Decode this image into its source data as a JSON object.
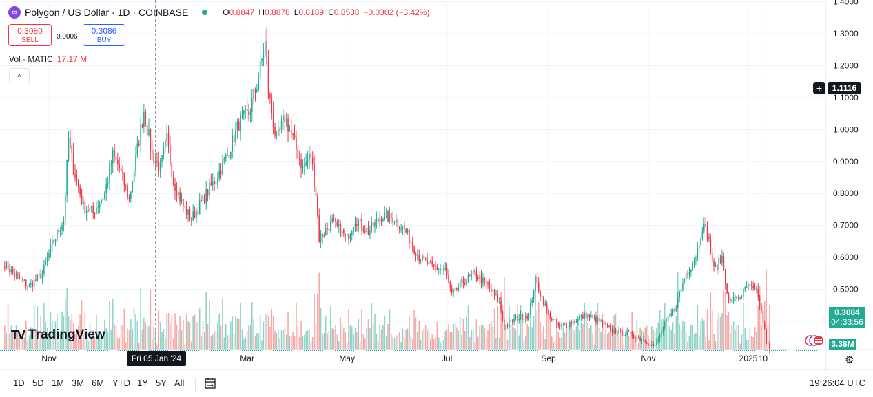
{
  "header": {
    "symbol_title": "Polygon / US Dollar · 1D · COINBASE",
    "open_label": "O",
    "open": "0.8847",
    "high_label": "H",
    "high": "0.8878",
    "low_label": "L",
    "low": "0.8189",
    "close_label": "C",
    "close": "0.8538",
    "change": "−0.0302 (−3.42%)"
  },
  "trade": {
    "sell_price": "0.3080",
    "sell_label": "SELL",
    "spread": "0.0006",
    "buy_price": "0.3086",
    "buy_label": "BUY"
  },
  "volume_indicator": {
    "label": "Vol · MATIC",
    "value": "17.17 M",
    "collapse_glyph": "˄"
  },
  "watermark": {
    "logo_text": "TV",
    "text": "TradingView"
  },
  "price_axis": {
    "crosshair_price": "1.1116",
    "current_price": "0.3084",
    "countdown": "04:33:56",
    "volume_value": "3.38M"
  },
  "time_axis": {
    "crosshair_date": "Fri 05 Jan '24"
  },
  "bottom_bar": {
    "ranges": [
      "1D",
      "5D",
      "1M",
      "3M",
      "6M",
      "YTD",
      "1Y",
      "5Y",
      "All"
    ],
    "clock": "19:26:04 UTC"
  },
  "colors": {
    "up": "#22ab94",
    "down": "#f23645",
    "up_vol": "#92d3c9",
    "down_vol": "#f7a9a7",
    "grid": "#f0f3fa",
    "crosshair": "#9598a1"
  },
  "icons": [
    "polygon-logo-icon",
    "collapse-chevron-icon",
    "plus-circle-icon",
    "flag-icon",
    "gear-icon",
    "calendar-range-icon"
  ],
  "chart_data": {
    "type": "candlestick",
    "title": "Polygon / US Dollar · 1D · COINBASE",
    "ylim": [
      0.26,
      1.44
    ],
    "y_ticks": [
      0.4,
      0.5,
      0.6,
      0.7,
      0.8,
      0.9,
      1.0,
      1.1,
      1.2,
      1.3,
      1.4
    ],
    "y_tick_labels": [
      "0.4000",
      "0.5000",
      "0.6000",
      "0.7000",
      "0.8000",
      "0.9000",
      "1.0000",
      "1.1000",
      "1.2000",
      "1.3000",
      "1.4000"
    ],
    "x_tick_labels": [
      "Nov",
      "Mar",
      "May",
      "Jul",
      "Sep",
      "Nov",
      "2025",
      "10"
    ],
    "x_tick_dates": [
      "2023-11-01",
      "2024-03-01",
      "2024-05-01",
      "2024-07-01",
      "2024-09-01",
      "2024-11-01",
      "2025-01-01",
      "2025-01-10"
    ],
    "start_date": "2023-10-05",
    "end_date": "2025-01-14",
    "crosshair": {
      "date": "2024-01-05",
      "price": 1.1116
    },
    "current_price": 0.3084,
    "close_anchors": [
      [
        "2023-10-05",
        0.58
      ],
      [
        "2023-10-12",
        0.54
      ],
      [
        "2023-10-20",
        0.51
      ],
      [
        "2023-10-28",
        0.55
      ],
      [
        "2023-11-03",
        0.64
      ],
      [
        "2023-11-10",
        0.72
      ],
      [
        "2023-11-13",
        0.97
      ],
      [
        "2023-11-16",
        0.88
      ],
      [
        "2023-11-22",
        0.76
      ],
      [
        "2023-11-28",
        0.74
      ],
      [
        "2023-12-05",
        0.8
      ],
      [
        "2023-12-10",
        0.92
      ],
      [
        "2023-12-14",
        0.88
      ],
      [
        "2023-12-20",
        0.78
      ],
      [
        "2023-12-26",
        0.97
      ],
      [
        "2023-12-29",
        1.06
      ],
      [
        "2024-01-03",
        0.92
      ],
      [
        "2024-01-08",
        0.88
      ],
      [
        "2024-01-12",
        0.97
      ],
      [
        "2024-01-16",
        0.84
      ],
      [
        "2024-01-22",
        0.76
      ],
      [
        "2024-01-27",
        0.72
      ],
      [
        "2024-02-03",
        0.78
      ],
      [
        "2024-02-10",
        0.84
      ],
      [
        "2024-02-18",
        0.92
      ],
      [
        "2024-02-25",
        1.02
      ],
      [
        "2024-03-02",
        1.05
      ],
      [
        "2024-03-07",
        1.14
      ],
      [
        "2024-03-12",
        1.27
      ],
      [
        "2024-03-14",
        1.12
      ],
      [
        "2024-03-19",
        0.96
      ],
      [
        "2024-03-24",
        1.04
      ],
      [
        "2024-03-29",
        0.97
      ],
      [
        "2024-04-04",
        0.88
      ],
      [
        "2024-04-09",
        0.92
      ],
      [
        "2024-04-12",
        0.8
      ],
      [
        "2024-04-14",
        0.66
      ],
      [
        "2024-04-22",
        0.71
      ],
      [
        "2024-05-01",
        0.66
      ],
      [
        "2024-05-06",
        0.72
      ],
      [
        "2024-05-14",
        0.68
      ],
      [
        "2024-05-22",
        0.73
      ],
      [
        "2024-05-30",
        0.72
      ],
      [
        "2024-06-06",
        0.68
      ],
      [
        "2024-06-14",
        0.6
      ],
      [
        "2024-06-22",
        0.57
      ],
      [
        "2024-06-30",
        0.56
      ],
      [
        "2024-07-04",
        0.48
      ],
      [
        "2024-07-10",
        0.52
      ],
      [
        "2024-07-18",
        0.55
      ],
      [
        "2024-07-26",
        0.51
      ],
      [
        "2024-08-02",
        0.46
      ],
      [
        "2024-08-05",
        0.38
      ],
      [
        "2024-08-12",
        0.41
      ],
      [
        "2024-08-20",
        0.42
      ],
      [
        "2024-08-24",
        0.53
      ],
      [
        "2024-09-01",
        0.42
      ],
      [
        "2024-09-08",
        0.38
      ],
      [
        "2024-09-16",
        0.4
      ],
      [
        "2024-09-24",
        0.42
      ],
      [
        "2024-10-02",
        0.4
      ],
      [
        "2024-10-10",
        0.37
      ],
      [
        "2024-10-20",
        0.36
      ],
      [
        "2024-10-30",
        0.34
      ],
      [
        "2024-11-05",
        0.32
      ],
      [
        "2024-11-10",
        0.38
      ],
      [
        "2024-11-17",
        0.44
      ],
      [
        "2024-11-24",
        0.55
      ],
      [
        "2024-11-30",
        0.6
      ],
      [
        "2024-12-04",
        0.7
      ],
      [
        "2024-12-07",
        0.68
      ],
      [
        "2024-12-11",
        0.56
      ],
      [
        "2024-12-16",
        0.6
      ],
      [
        "2024-12-20",
        0.46
      ],
      [
        "2024-12-27",
        0.48
      ],
      [
        "2025-01-01",
        0.51
      ],
      [
        "2025-01-06",
        0.49
      ],
      [
        "2025-01-09",
        0.43
      ],
      [
        "2025-01-12",
        0.34
      ],
      [
        "2025-01-14",
        0.3084
      ]
    ]
  }
}
